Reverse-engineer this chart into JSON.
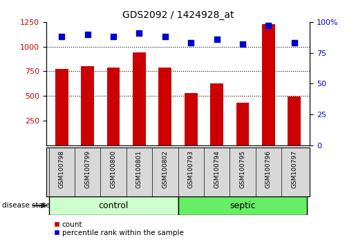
{
  "title": "GDS2092 / 1424928_at",
  "samples": [
    "GSM100798",
    "GSM100799",
    "GSM100800",
    "GSM100801",
    "GSM100802",
    "GSM100793",
    "GSM100794",
    "GSM100795",
    "GSM100796",
    "GSM100797"
  ],
  "counts": [
    775,
    800,
    790,
    940,
    785,
    530,
    630,
    430,
    1230,
    495
  ],
  "percentiles": [
    88,
    90,
    88,
    91,
    88,
    83,
    86,
    82,
    97,
    83
  ],
  "groups": [
    "control",
    "control",
    "control",
    "control",
    "control",
    "septic",
    "septic",
    "septic",
    "septic",
    "septic"
  ],
  "bar_color": "#cc0000",
  "dot_color": "#0000cc",
  "ylim_left": [
    0,
    1250
  ],
  "ylim_right": [
    0,
    100
  ],
  "yticks_left": [
    250,
    500,
    750,
    1000,
    1250
  ],
  "yticks_right": [
    0,
    25,
    50,
    75,
    100
  ],
  "grid_values": [
    500,
    750,
    1000
  ],
  "control_color": "#ccffcc",
  "septic_color": "#66ee66",
  "label_color_left": "#cc0000",
  "label_color_right": "#0000cc",
  "legend_count_label": "count",
  "legend_pct_label": "percentile rank within the sample",
  "disease_state_label": "disease state",
  "control_label": "control",
  "septic_label": "septic",
  "bg_gray": "#d8d8d8",
  "bg_white": "#ffffff"
}
